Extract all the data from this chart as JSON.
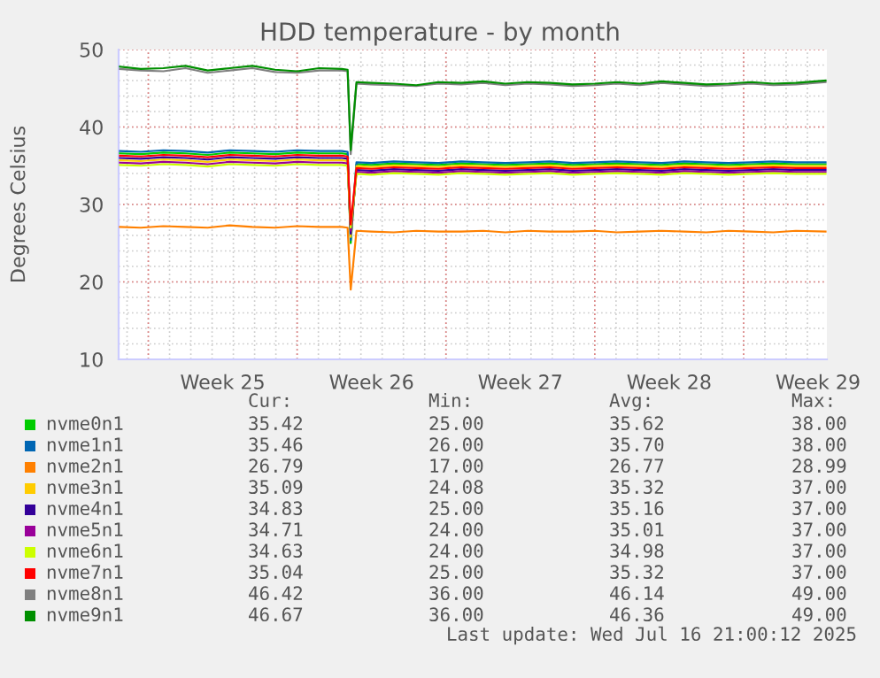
{
  "chart_data": {
    "type": "line",
    "title": "HDD temperature - by month",
    "ylabel": "Degrees Celsius",
    "x": [
      "2025-06-14T16:00",
      "2025-06-15T15:30",
      "2025-06-16T17:00",
      "2025-06-17T18:00",
      "2025-06-18T19:00",
      "2025-06-19T20:00",
      "2025-06-20T21:30",
      "2025-06-21T23:00",
      "2025-06-23T00:00",
      "2025-06-24T01:00",
      "2025-06-25T02:30",
      "2025-06-25T09:00",
      "2025-06-25T12:30",
      "2025-06-25T19:00",
      "2025-06-26T12:00",
      "2025-06-27T13:00",
      "2025-06-28T14:30",
      "2025-06-29T15:30",
      "2025-06-30T17:00",
      "2025-07-01T18:00",
      "2025-07-02T19:00",
      "2025-07-03T20:30",
      "2025-07-04T21:30",
      "2025-07-05T23:00",
      "2025-07-07T00:00",
      "2025-07-08T01:00",
      "2025-07-09T02:30",
      "2025-07-10T03:30",
      "2025-07-11T05:00",
      "2025-07-12T06:00",
      "2025-07-13T07:00",
      "2025-07-14T08:30",
      "2025-07-15T09:30",
      "2025-07-16T11:00",
      "2025-07-17T20:30"
    ],
    "xlim": [
      "2025-06-14T14:30",
      "2025-07-17T22:00"
    ],
    "xticks": [
      {
        "value": "2025-06-19T12:00",
        "label": "Week 25"
      },
      {
        "value": "2025-06-26T12:00",
        "label": "Week 26"
      },
      {
        "value": "2025-07-03T12:00",
        "label": "Week 27"
      },
      {
        "value": "2025-07-10T12:00",
        "label": "Week 28"
      },
      {
        "value": "2025-07-17T12:00",
        "label": "Week 29"
      }
    ],
    "ylim": [
      10,
      50
    ],
    "yticks": [
      10,
      20,
      30,
      40,
      50
    ],
    "grid": true,
    "legend": "bottom",
    "series": [
      {
        "name": "nvme0n1",
        "color": "#00cc00",
        "values": [
          36.6,
          36.5,
          36.7,
          36.6,
          36.4,
          36.7,
          36.6,
          36.5,
          36.7,
          36.6,
          36.6,
          36.5,
          25.0,
          35.2,
          35.1,
          35.3,
          35.2,
          35.1,
          35.3,
          35.2,
          35.1,
          35.2,
          35.3,
          35.1,
          35.2,
          35.3,
          35.2,
          35.1,
          35.3,
          35.2,
          35.1,
          35.2,
          35.3,
          35.2,
          35.2
        ]
      },
      {
        "name": "nvme1n1",
        "color": "#0066b3",
        "values": [
          36.9,
          36.8,
          37.0,
          36.9,
          36.7,
          37.0,
          36.9,
          36.8,
          37.0,
          36.9,
          36.9,
          36.8,
          25.4,
          35.45,
          35.35,
          35.55,
          35.45,
          35.35,
          35.55,
          35.45,
          35.35,
          35.45,
          35.55,
          35.35,
          35.45,
          35.55,
          35.45,
          35.35,
          35.55,
          35.45,
          35.35,
          35.45,
          35.55,
          35.45,
          35.45
        ]
      },
      {
        "name": "nvme2n1",
        "color": "#ff8000",
        "values": [
          27.1,
          27.0,
          27.2,
          27.1,
          27.0,
          27.3,
          27.1,
          27.0,
          27.2,
          27.1,
          27.1,
          27.0,
          19.0,
          26.6,
          26.5,
          26.4,
          26.6,
          26.5,
          26.5,
          26.6,
          26.4,
          26.6,
          26.5,
          26.5,
          26.6,
          26.4,
          26.5,
          26.6,
          26.5,
          26.4,
          26.6,
          26.5,
          26.4,
          26.6,
          26.5
        ]
      },
      {
        "name": "nvme3n1",
        "color": "#ffcc00",
        "values": [
          35.7,
          35.6,
          35.8,
          35.7,
          35.5,
          35.8,
          35.7,
          35.6,
          35.8,
          35.7,
          35.7,
          35.6,
          25.8,
          34.95,
          34.85,
          35.05,
          34.95,
          34.85,
          35.05,
          34.95,
          34.85,
          34.95,
          35.05,
          34.85,
          34.95,
          35.05,
          34.95,
          34.85,
          35.05,
          34.95,
          34.85,
          34.95,
          35.05,
          34.95,
          34.95
        ]
      },
      {
        "name": "nvme4n1",
        "color": "#330099",
        "values": [
          36.0,
          35.9,
          36.1,
          36.0,
          35.8,
          36.1,
          36.0,
          35.9,
          36.1,
          36.0,
          36.0,
          35.9,
          26.2,
          34.45,
          34.35,
          34.55,
          34.45,
          34.35,
          34.55,
          34.45,
          34.35,
          34.45,
          34.55,
          34.35,
          34.45,
          34.55,
          34.45,
          34.35,
          34.55,
          34.45,
          34.35,
          34.45,
          34.55,
          34.45,
          34.45
        ]
      },
      {
        "name": "nvme5n1",
        "color": "#990099",
        "values": [
          35.4,
          35.3,
          35.5,
          35.4,
          35.2,
          35.5,
          35.4,
          35.3,
          35.5,
          35.4,
          35.4,
          35.3,
          26.6,
          34.2,
          34.1,
          34.3,
          34.2,
          34.1,
          34.3,
          34.2,
          34.1,
          34.2,
          34.3,
          34.1,
          34.2,
          34.3,
          34.2,
          34.1,
          34.3,
          34.2,
          34.1,
          34.2,
          34.3,
          34.2,
          34.2
        ]
      },
      {
        "name": "nvme6n1",
        "color": "#ccff00",
        "values": [
          35.1,
          35.0,
          35.2,
          35.1,
          34.9,
          35.2,
          35.1,
          35.0,
          35.2,
          35.1,
          35.1,
          35.0,
          27.0,
          33.95,
          33.85,
          34.05,
          33.95,
          33.85,
          34.05,
          33.95,
          33.85,
          33.95,
          34.05,
          33.85,
          33.95,
          34.05,
          33.95,
          33.85,
          34.05,
          33.95,
          33.85,
          33.95,
          34.05,
          33.95,
          33.95
        ]
      },
      {
        "name": "nvme7n1",
        "color": "#ff0000",
        "values": [
          36.3,
          36.2,
          36.4,
          36.3,
          36.1,
          36.4,
          36.3,
          36.2,
          36.4,
          36.3,
          36.3,
          36.2,
          27.4,
          34.7,
          34.6,
          34.8,
          34.7,
          34.6,
          34.8,
          34.7,
          34.6,
          34.7,
          34.8,
          34.6,
          34.7,
          34.8,
          34.7,
          34.6,
          34.8,
          34.7,
          34.6,
          34.7,
          34.8,
          34.7,
          34.7
        ]
      },
      {
        "name": "nvme8n1",
        "color": "#808080",
        "values": [
          47.5,
          47.3,
          47.2,
          47.6,
          47.0,
          47.3,
          47.6,
          47.1,
          47.0,
          47.3,
          47.3,
          47.2,
          36.5,
          45.6,
          45.5,
          45.4,
          45.3,
          45.6,
          45.5,
          45.7,
          45.4,
          45.6,
          45.5,
          45.3,
          45.4,
          45.6,
          45.4,
          45.7,
          45.5,
          45.3,
          45.4,
          45.6,
          45.4,
          45.5,
          45.8
        ]
      },
      {
        "name": "nvme9n1",
        "color": "#008f00",
        "values": [
          47.8,
          47.5,
          47.6,
          47.9,
          47.3,
          47.6,
          47.9,
          47.4,
          47.2,
          47.6,
          47.5,
          47.4,
          37.0,
          45.8,
          45.7,
          45.6,
          45.4,
          45.8,
          45.7,
          45.9,
          45.6,
          45.8,
          45.7,
          45.5,
          45.6,
          45.8,
          45.6,
          45.9,
          45.7,
          45.5,
          45.6,
          45.8,
          45.6,
          45.7,
          46.0
        ]
      }
    ],
    "annotations": [
      "Cur:",
      "Min:",
      "Avg:",
      "Max:",
      "35.42",
      "25.00",
      "35.62",
      "38.00",
      "35.46",
      "26.00",
      "35.70",
      "38.00",
      "26.79",
      "17.00",
      "26.77",
      "28.99",
      "35.09",
      "24.08",
      "35.32",
      "37.00",
      "34.83",
      "25.00",
      "35.16",
      "37.00",
      "34.71",
      "24.00",
      "35.01",
      "37.00",
      "34.63",
      "24.00",
      "34.98",
      "37.00",
      "35.04",
      "25.00",
      "35.32",
      "37.00",
      "46.42",
      "36.00",
      "46.14",
      "49.00",
      "46.67",
      "36.00",
      "46.36",
      "49.00",
      "Last update: Wed Jul 16 21:00:12 2025"
    ]
  }
}
